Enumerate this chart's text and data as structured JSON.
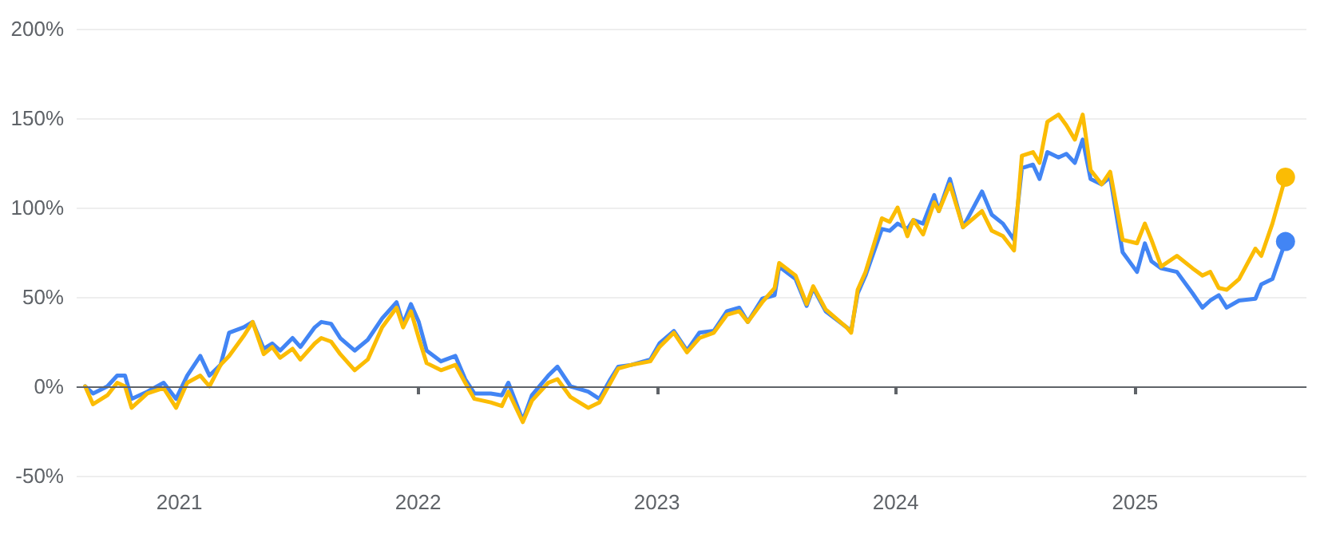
{
  "chart_data": {
    "type": "line",
    "x": [
      "2020-08-10",
      "2020-08-22",
      "2020-09-13",
      "2020-09-28",
      "2020-10-10",
      "2020-10-20",
      "2020-11-13",
      "2020-12-08",
      "2020-12-27",
      "2021-01-13",
      "2021-02-02",
      "2021-02-16",
      "2021-03-05",
      "2021-03-18",
      "2021-04-09",
      "2021-04-23",
      "2021-05-10",
      "2021-05-23",
      "2021-06-04",
      "2021-06-23",
      "2021-07-05",
      "2021-07-27",
      "2021-08-06",
      "2021-08-21",
      "2021-09-04",
      "2021-09-26",
      "2021-10-16",
      "2021-11-07",
      "2021-11-29",
      "2021-12-09",
      "2021-12-21",
      "2022-01-02",
      "2022-01-14",
      "2022-02-05",
      "2022-02-27",
      "2022-03-14",
      "2022-03-28",
      "2022-04-22",
      "2022-05-09",
      "2022-05-19",
      "2022-06-10",
      "2022-06-24",
      "2022-07-19",
      "2022-08-02",
      "2022-08-22",
      "2022-09-18",
      "2022-10-05",
      "2022-10-22",
      "2022-11-03",
      "2022-11-23",
      "2022-12-22",
      "2023-01-05",
      "2023-01-27",
      "2023-02-16",
      "2023-03-07",
      "2023-03-29",
      "2023-04-18",
      "2023-05-07",
      "2023-05-20",
      "2023-06-11",
      "2023-06-30",
      "2023-07-07",
      "2023-08-01",
      "2023-08-18",
      "2023-08-28",
      "2023-09-16",
      "2023-10-18",
      "2023-10-25",
      "2023-11-04",
      "2023-11-16",
      "2023-12-11",
      "2023-12-23",
      "2024-01-04",
      "2024-01-19",
      "2024-01-28",
      "2024-02-12",
      "2024-02-29",
      "2024-03-07",
      "2024-03-24",
      "2024-04-13",
      "2024-05-12",
      "2024-05-27",
      "2024-06-13",
      "2024-06-30",
      "2024-07-12",
      "2024-07-29",
      "2024-08-08",
      "2024-08-20",
      "2024-09-06",
      "2024-09-18",
      "2024-10-01",
      "2024-10-13",
      "2024-10-25",
      "2024-11-11",
      "2024-11-24",
      "2024-12-13",
      "2025-01-04",
      "2025-01-16",
      "2025-01-26",
      "2025-02-10",
      "2025-03-06",
      "2025-03-30",
      "2025-04-14",
      "2025-04-26",
      "2025-05-09",
      "2025-05-21",
      "2025-06-09",
      "2025-07-04",
      "2025-07-13",
      "2025-07-30",
      "2025-08-19"
    ],
    "series": [
      {
        "color": "#4285f4",
        "values": [
          0,
          -4,
          0,
          6,
          6,
          -7,
          -3,
          2,
          -7,
          6,
          17,
          6,
          12,
          30,
          33,
          36,
          21,
          24,
          20,
          27,
          22,
          33,
          36,
          35,
          27,
          20,
          26,
          38,
          47,
          35,
          46,
          36,
          20,
          14,
          17,
          4,
          -4,
          -4,
          -5,
          2,
          -19,
          -5,
          6,
          11,
          0,
          -3,
          -7,
          4,
          11,
          12,
          15,
          24,
          31,
          20,
          30,
          31,
          42,
          44,
          36,
          49,
          51,
          67,
          60,
          45,
          55,
          42,
          33,
          31,
          52,
          62,
          88,
          87,
          91,
          88,
          93,
          91,
          107,
          98,
          116,
          89,
          109,
          96,
          91,
          82,
          122,
          124,
          116,
          131,
          128,
          130,
          125,
          138,
          116,
          113,
          117,
          75,
          64,
          80,
          70,
          66,
          64,
          52,
          44,
          48,
          51,
          44,
          48,
          49,
          57,
          60,
          81
        ]
      },
      {
        "color": "#fbbc04",
        "values": [
          0,
          -10,
          -5,
          2,
          0,
          -12,
          -4,
          -1,
          -12,
          2,
          6,
          0,
          12,
          17,
          28,
          36,
          18,
          22,
          16,
          21,
          15,
          24,
          27,
          25,
          18,
          9,
          15,
          33,
          44,
          33,
          42,
          27,
          13,
          9,
          12,
          2,
          -7,
          -9,
          -11,
          -3,
          -20,
          -8,
          2,
          4,
          -6,
          -12,
          -9,
          2,
          10,
          12,
          14,
          22,
          30,
          19,
          27,
          30,
          40,
          42,
          36,
          47,
          55,
          69,
          62,
          46,
          56,
          43,
          33,
          30,
          54,
          64,
          94,
          92,
          100,
          84,
          93,
          85,
          103,
          98,
          113,
          89,
          98,
          87,
          84,
          76,
          129,
          131,
          125,
          148,
          152,
          146,
          138,
          152,
          121,
          113,
          120,
          82,
          80,
          91,
          82,
          67,
          73,
          66,
          62,
          64,
          55,
          54,
          60,
          77,
          73,
          91,
          117
        ]
      }
    ],
    "xlim": [
      "2020-07-28",
      "2025-09-20"
    ],
    "xticks": [
      {
        "value": "2021-01-01",
        "label": "2021"
      },
      {
        "value": "2022-01-01",
        "label": "2022"
      },
      {
        "value": "2023-01-01",
        "label": "2023"
      },
      {
        "value": "2024-01-01",
        "label": "2024"
      },
      {
        "value": "2025-01-01",
        "label": "2025"
      }
    ],
    "ylim": [
      -50,
      200
    ],
    "yticks": [
      {
        "value": -50,
        "label": "-50%"
      },
      {
        "value": 0,
        "label": "0%"
      },
      {
        "value": 50,
        "label": "50%"
      },
      {
        "value": 100,
        "label": "100%"
      },
      {
        "value": 150,
        "label": "150%"
      },
      {
        "value": 200,
        "label": "200%"
      }
    ],
    "grid": "y",
    "ref_lines": [
      {
        "axis": "y",
        "value": 0,
        "color": "#5f6368"
      }
    ]
  }
}
